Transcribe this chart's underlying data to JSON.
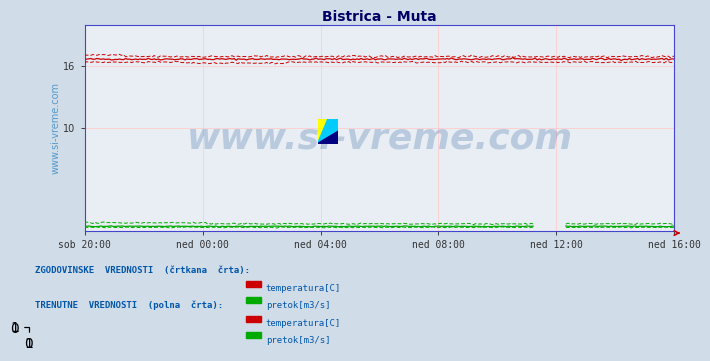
{
  "title": "Bistrica - Muta",
  "title_color": "#000066",
  "title_fontsize": 10,
  "bg_color": "#d0dce8",
  "plot_bg_color": "#e8eef4",
  "x_ticks_labels": [
    "sob 20:00",
    "ned 00:00",
    "ned 04:00",
    "ned 08:00",
    "ned 12:00",
    "ned 16:00"
  ],
  "x_ticks_pos": [
    0.0,
    0.2,
    0.4,
    0.6,
    0.8,
    1.0
  ],
  "y_ticks": [
    10,
    16
  ],
  "ylim": [
    0,
    20
  ],
  "xlim": [
    0,
    1
  ],
  "temp_base": 16.7,
  "flow_base": 0.45,
  "n_points": 289,
  "watermark": "www.si-vreme.com",
  "watermark_color": "#3060a0",
  "watermark_alpha": 0.25,
  "watermark_fontsize": 26,
  "legend_text1": "ZGODOVINSKE  VREDNOSTI  (črtkana  črta):",
  "legend_text2": "TRENUTNE  VREDNOSTI  (polna  črta):",
  "legend_temp": "temperatura[C]",
  "legend_flow": "pretok[m3/s]",
  "legend_color_text": "#0055aa",
  "grid_color": "#ffcccc",
  "grid_color_v": "#ffcccc",
  "axis_color": "#333333",
  "spine_color": "#4444cc",
  "tick_color": "#333333",
  "tick_fontsize": 7,
  "ylabel_text": "www.si-vreme.com",
  "ylabel_color": "#5599cc",
  "ylabel_fontsize": 7,
  "temp_color": "#cc0000",
  "flow_color": "#00aa00",
  "arrow_color": "#cc0000"
}
